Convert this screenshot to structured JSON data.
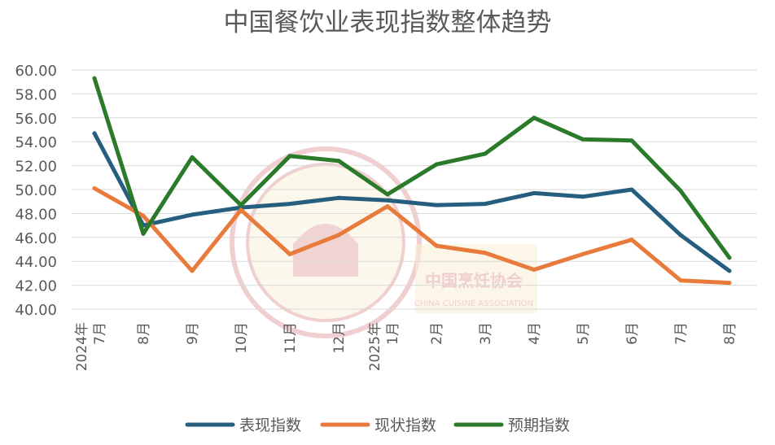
{
  "chart_data": {
    "type": "line",
    "title": "中国餐饮业表现指数整体趋势",
    "xlabel": "",
    "ylabel": "",
    "ylim": [
      40,
      60
    ],
    "yticks": [
      "40.00",
      "42.00",
      "44.00",
      "46.00",
      "48.00",
      "50.00",
      "52.00",
      "54.00",
      "56.00",
      "58.00",
      "60.00"
    ],
    "categories": [
      [
        "2024年",
        "7月"
      ],
      [
        "8月"
      ],
      [
        "9月"
      ],
      [
        "10月"
      ],
      [
        "11月"
      ],
      [
        "12月"
      ],
      [
        "2025年",
        "1月"
      ],
      [
        "2月"
      ],
      [
        "3月"
      ],
      [
        "4月"
      ],
      [
        "5月"
      ],
      [
        "6月"
      ],
      [
        "7月"
      ],
      [
        "8月"
      ]
    ],
    "series": [
      {
        "name": "表现指数",
        "color": "#255e7e",
        "values": [
          54.7,
          47.0,
          47.9,
          48.5,
          48.8,
          49.3,
          49.1,
          48.7,
          48.8,
          49.7,
          49.4,
          50.0,
          46.2,
          43.2
        ]
      },
      {
        "name": "现状指数",
        "color": "#e87b3b",
        "values": [
          50.1,
          47.8,
          43.2,
          48.3,
          44.6,
          46.2,
          48.6,
          45.3,
          44.7,
          43.3,
          44.6,
          45.8,
          42.4,
          42.2
        ]
      },
      {
        "name": "预期指数",
        "color": "#2a7a2a",
        "values": [
          59.3,
          46.3,
          52.7,
          48.7,
          52.8,
          52.4,
          49.6,
          52.1,
          53.0,
          56.0,
          54.2,
          54.1,
          49.9,
          44.3
        ]
      }
    ],
    "grid": true,
    "legend_position": "bottom"
  },
  "watermark": {
    "text_cn": "中国烹饪协会",
    "text_en": "CHINA CUISINE ASSOCIATION",
    "ring_color": "#e3a8a8",
    "fill_color": "#f3e2b8"
  }
}
